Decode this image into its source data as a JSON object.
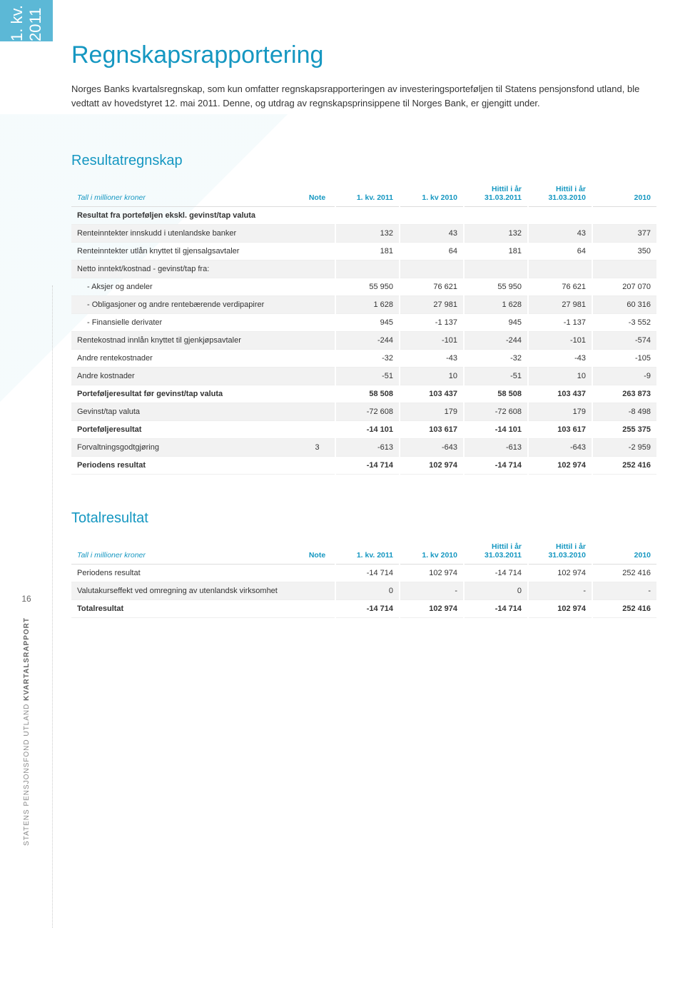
{
  "sidebar": {
    "tab": "1. kv. 2011",
    "page_number": "16",
    "vertical_label_light": "STATENS PENSJONSFOND UTLAND",
    "vertical_label_bold": "KVARTALSRAPPORT"
  },
  "title": "Regnskapsrapportering",
  "intro": "Norges Banks kvartalsregnskap, som kun omfatter regnskapsrapporteringen av investeringsporteføljen til Statens pensjonsfond utland, ble vedtatt av hovedstyret 12. mai 2011. Denne, og utdrag av regnskapsprinsippene til Norges Bank, er gjengitt under.",
  "t1": {
    "title": "Resultatregnskap",
    "headers": {
      "label": "Tall i millioner kroner",
      "note": "Note",
      "c1": "1. kv. 2011",
      "c2": "1. kv 2010",
      "c3": "Hittil i år 31.03.2011",
      "c4": "Hittil i år 31.03.2010",
      "c5": "2010"
    },
    "r0": {
      "label": "Resultat fra porteføljen ekskl. gevinst/tap valuta"
    },
    "r1": {
      "label": "Renteinntekter innskudd i utenlandske banker",
      "c1": "132",
      "c2": "43",
      "c3": "132",
      "c4": "43",
      "c5": "377"
    },
    "r2": {
      "label": "Renteinntekter utlån knyttet til gjensalgsavtaler",
      "c1": "181",
      "c2": "64",
      "c3": "181",
      "c4": "64",
      "c5": "350"
    },
    "r3": {
      "label": "Netto inntekt/kostnad - gevinst/tap fra:"
    },
    "r4": {
      "label": "- Aksjer og andeler",
      "c1": "55 950",
      "c2": "76 621",
      "c3": "55 950",
      "c4": "76 621",
      "c5": "207 070"
    },
    "r5": {
      "label": "- Obligasjoner og andre rentebærende verdipapirer",
      "c1": "1 628",
      "c2": "27 981",
      "c3": "1 628",
      "c4": "27 981",
      "c5": "60 316"
    },
    "r6": {
      "label": "- Finansielle derivater",
      "c1": "945",
      "c2": "-1 137",
      "c3": "945",
      "c4": "-1 137",
      "c5": "-3 552"
    },
    "r7": {
      "label": "Rentekostnad innlån knyttet til gjenkjøpsavtaler",
      "c1": "-244",
      "c2": "-101",
      "c3": "-244",
      "c4": "-101",
      "c5": "-574"
    },
    "r8": {
      "label": "Andre rentekostnader",
      "c1": "-32",
      "c2": "-43",
      "c3": "-32",
      "c4": "-43",
      "c5": "-105"
    },
    "r9": {
      "label": "Andre kostnader",
      "c1": "-51",
      "c2": "10",
      "c3": "-51",
      "c4": "10",
      "c5": "-9"
    },
    "r10": {
      "label": "Porteføljeresultat før gevinst/tap valuta",
      "c1": "58 508",
      "c2": "103 437",
      "c3": "58 508",
      "c4": "103 437",
      "c5": "263 873"
    },
    "r11": {
      "label": "Gevinst/tap valuta",
      "c1": "-72 608",
      "c2": "179",
      "c3": "-72 608",
      "c4": "179",
      "c5": "-8 498"
    },
    "r12": {
      "label": "Porteføljeresultat",
      "c1": "-14 101",
      "c2": "103 617",
      "c3": "-14 101",
      "c4": "103 617",
      "c5": "255 375"
    },
    "r13": {
      "label": "Forvaltningsgodtgjøring",
      "note": "3",
      "c1": "-613",
      "c2": "-643",
      "c3": "-613",
      "c4": "-643",
      "c5": "-2 959"
    },
    "r14": {
      "label": "Periodens resultat",
      "c1": "-14 714",
      "c2": "102 974",
      "c3": "-14 714",
      "c4": "102 974",
      "c5": "252 416"
    }
  },
  "t2": {
    "title": "Totalresultat",
    "headers": {
      "label": "Tall i millioner kroner",
      "note": "Note",
      "c1": "1. kv. 2011",
      "c2": "1. kv 2010",
      "c3": "Hittil i år 31.03.2011",
      "c4": "Hittil i år 31.03.2010",
      "c5": "2010"
    },
    "r1": {
      "label": "Periodens resultat",
      "c1": "-14 714",
      "c2": "102 974",
      "c3": "-14 714",
      "c4": "102 974",
      "c5": "252 416"
    },
    "r2": {
      "label": "Valutakurseffekt ved omregning av utenlandsk virksomhet",
      "c1": "0",
      "c2": "-",
      "c3": "0",
      "c4": "-",
      "c5": "-"
    },
    "r3": {
      "label": "Totalresultat",
      "c1": "-14 714",
      "c2": "102 974",
      "c3": "-14 714",
      "c4": "102 974",
      "c5": "252 416"
    }
  }
}
